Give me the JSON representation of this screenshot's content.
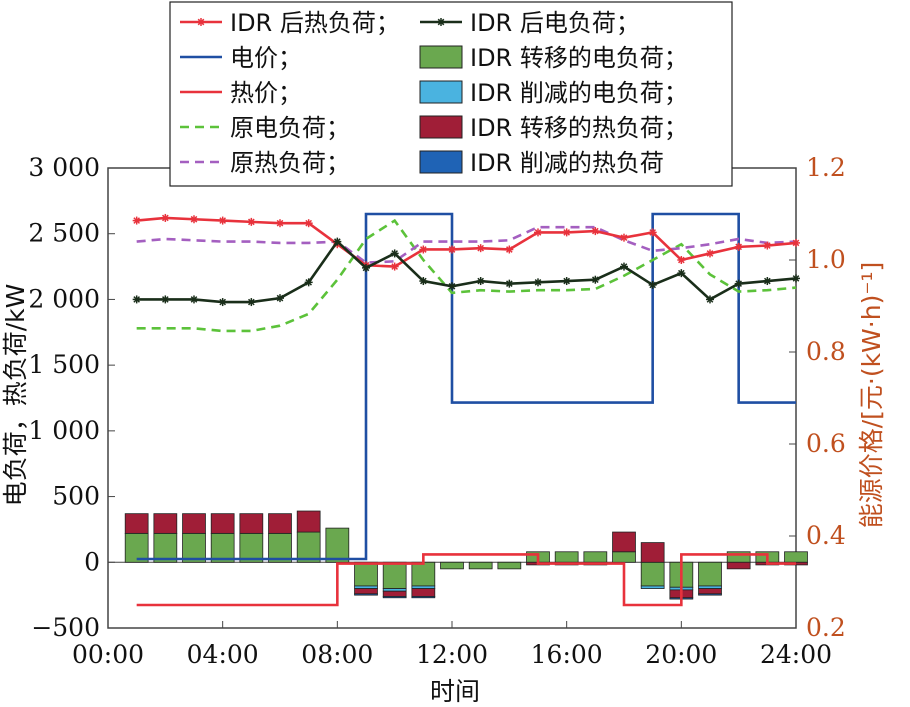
{
  "chart_data": {
    "type": "bar",
    "xlabel": "时间",
    "ylabel": "电负荷，热负荷/kW",
    "ylabel_right": "能源价格/[元·(kW·h)⁻¹]",
    "xlim": [
      0,
      24
    ],
    "ylim": [
      -500,
      3000
    ],
    "ylim_right": [
      0.2,
      1.2
    ],
    "x_ticks": [
      "00:00",
      "04:00",
      "08:00",
      "12:00",
      "16:00",
      "20:00",
      "24:00"
    ],
    "y_ticks": [
      "−500",
      "0",
      "500",
      "1 000",
      "1 500",
      "2 000",
      "2 500",
      "3 000"
    ],
    "y_ticks_right": [
      "0.2",
      "0.4",
      "0.6",
      "0.8",
      "1.0",
      "1.2"
    ],
    "hours": [
      1,
      2,
      3,
      4,
      5,
      6,
      7,
      8,
      9,
      10,
      11,
      12,
      13,
      14,
      15,
      16,
      17,
      18,
      19,
      20,
      21,
      22,
      23,
      24
    ],
    "lines": [
      {
        "name": "IDR 后热负荷；",
        "color": "#e8323c",
        "marker": "star",
        "axis": "left",
        "x": [
          1,
          2,
          3,
          4,
          5,
          6,
          7,
          8,
          9,
          10,
          11,
          12,
          13,
          14,
          15,
          16,
          17,
          18,
          19,
          20,
          21,
          22,
          23,
          24
        ],
        "values": [
          2600,
          2620,
          2610,
          2600,
          2590,
          2580,
          2580,
          2420,
          2260,
          2250,
          2380,
          2380,
          2390,
          2380,
          2510,
          2510,
          2520,
          2470,
          2510,
          2300,
          2350,
          2400,
          2410,
          2430
        ]
      },
      {
        "name": "IDR 后电负荷；",
        "color": "#1a2e1a",
        "marker": "star",
        "axis": "left",
        "x": [
          1,
          2,
          3,
          4,
          5,
          6,
          7,
          8,
          9,
          10,
          11,
          12,
          13,
          14,
          15,
          16,
          17,
          18,
          19,
          20,
          21,
          22,
          23,
          24
        ],
        "values": [
          2000,
          2000,
          2000,
          1980,
          1980,
          2010,
          2130,
          2440,
          2240,
          2350,
          2140,
          2100,
          2140,
          2120,
          2130,
          2140,
          2150,
          2250,
          2110,
          2200,
          2000,
          2120,
          2140,
          2160
        ]
      },
      {
        "name": "原电负荷；",
        "color": "#5cc23a",
        "dashed": true,
        "axis": "left",
        "x": [
          1,
          2,
          3,
          4,
          5,
          6,
          7,
          8,
          9,
          10,
          11,
          12,
          13,
          14,
          15,
          16,
          17,
          18,
          19,
          20,
          21,
          22,
          23,
          24
        ],
        "values": [
          1780,
          1780,
          1780,
          1760,
          1760,
          1800,
          1890,
          2150,
          2460,
          2600,
          2300,
          2050,
          2070,
          2060,
          2070,
          2070,
          2080,
          2180,
          2300,
          2420,
          2190,
          2060,
          2070,
          2090
        ]
      },
      {
        "name": "原热负荷；",
        "color": "#a45fc0",
        "dashed": true,
        "axis": "left",
        "x": [
          1,
          2,
          3,
          4,
          5,
          6,
          7,
          8,
          9,
          10,
          11,
          12,
          13,
          14,
          15,
          16,
          17,
          18,
          19,
          20,
          21,
          22,
          23,
          24
        ],
        "values": [
          2440,
          2460,
          2450,
          2440,
          2440,
          2430,
          2430,
          2440,
          2280,
          2290,
          2440,
          2440,
          2440,
          2450,
          2550,
          2550,
          2550,
          2450,
          2370,
          2390,
          2420,
          2460,
          2430,
          2440
        ]
      }
    ],
    "prices": [
      {
        "name": "电价；",
        "color": "#1f4fa3",
        "axis": "right",
        "steps": [
          [
            1,
            9,
            0.35
          ],
          [
            9,
            12,
            1.1
          ],
          [
            12,
            19,
            0.69
          ],
          [
            19,
            22,
            1.1
          ],
          [
            22,
            24,
            0.69
          ]
        ]
      },
      {
        "name": "热价；",
        "color": "#e8323c",
        "axis": "right",
        "steps": [
          [
            1,
            8,
            0.25
          ],
          [
            8,
            11,
            0.34
          ],
          [
            11,
            15,
            0.36
          ],
          [
            15,
            18,
            0.34
          ],
          [
            18,
            20,
            0.25
          ],
          [
            20,
            23,
            0.36
          ],
          [
            23,
            24,
            0.34
          ]
        ]
      }
    ],
    "stacked_bars": {
      "hours": [
        1,
        2,
        3,
        4,
        5,
        6,
        7,
        8,
        9,
        10,
        11,
        12,
        13,
        14,
        15,
        16,
        17,
        18,
        19,
        20,
        21,
        22,
        23,
        24
      ],
      "series": [
        {
          "name": "IDR 转移的电负荷；",
          "color": "#6aa84f",
          "values": [
            220,
            220,
            220,
            220,
            220,
            220,
            230,
            260,
            -180,
            -200,
            -180,
            -50,
            -50,
            -50,
            80,
            80,
            80,
            80,
            -180,
            -190,
            -180,
            80,
            80,
            80
          ]
        },
        {
          "name": "IDR 削减的电负荷；",
          "color": "#4ab3e0",
          "values": [
            0,
            0,
            0,
            0,
            0,
            0,
            0,
            0,
            -20,
            -20,
            -20,
            0,
            0,
            0,
            0,
            0,
            0,
            0,
            -20,
            -20,
            -20,
            0,
            0,
            0
          ]
        },
        {
          "name": "IDR 转移的热负荷；",
          "color": "#a01e37",
          "values": [
            150,
            150,
            150,
            150,
            150,
            150,
            160,
            0,
            -40,
            -40,
            -60,
            0,
            0,
            0,
            -20,
            -20,
            -20,
            150,
            150,
            -60,
            -40,
            -50,
            -20,
            -20
          ]
        },
        {
          "name": "IDR 削减的热负荷",
          "color": "#1f63b5",
          "values": [
            0,
            0,
            0,
            0,
            0,
            0,
            0,
            0,
            -10,
            -10,
            -10,
            0,
            0,
            0,
            0,
            0,
            0,
            0,
            0,
            -10,
            -10,
            0,
            0,
            0
          ]
        }
      ]
    },
    "legend_position": "top"
  }
}
